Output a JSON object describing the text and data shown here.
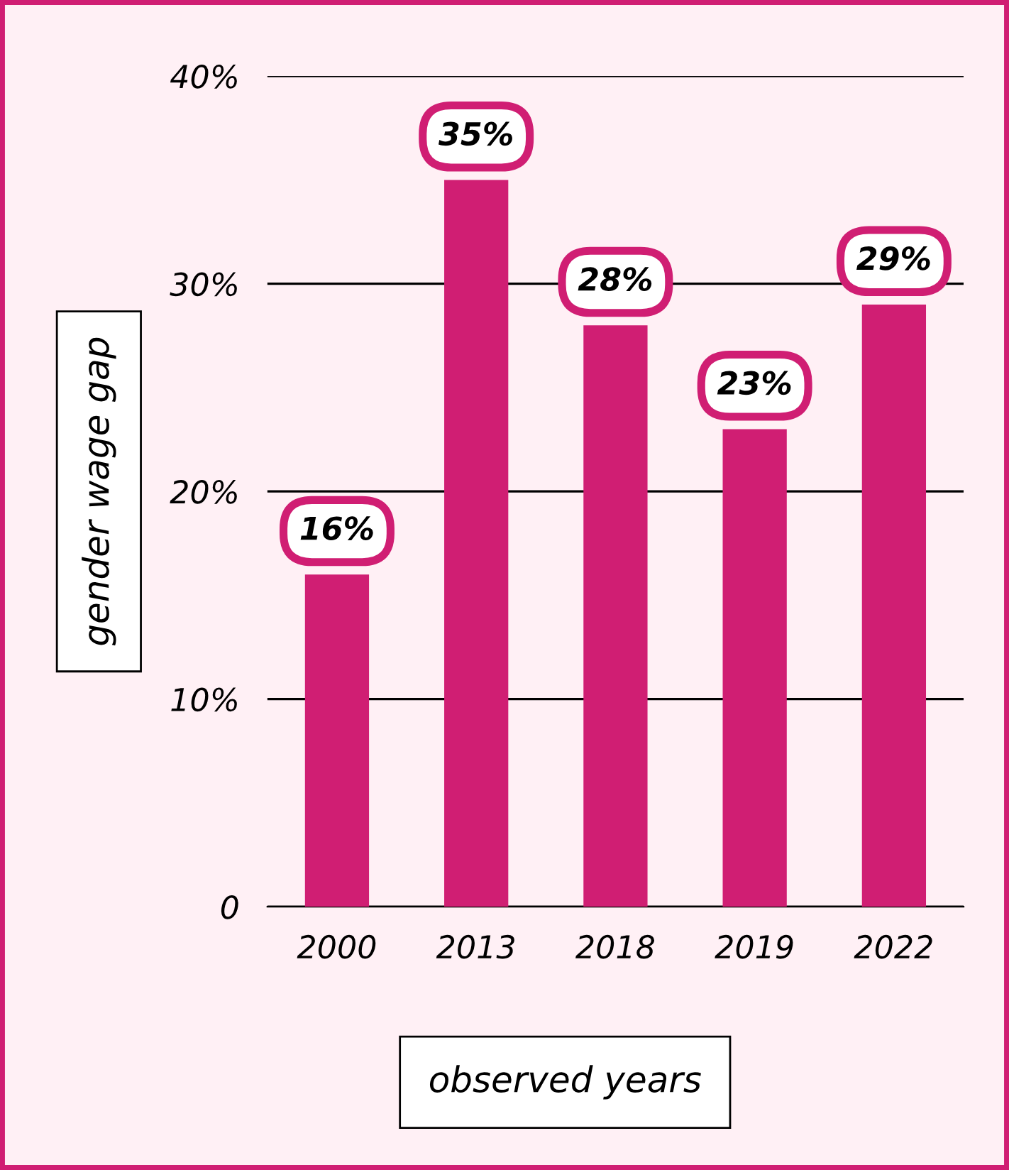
{
  "chart_data": {
    "type": "bar",
    "xlabel": "observed years",
    "ylabel": "gender wage gap",
    "categories": [
      "2000",
      "2013",
      "2018",
      "2019",
      "2022"
    ],
    "values": [
      16,
      35,
      28,
      23,
      29
    ],
    "value_labels": [
      "16%",
      "35%",
      "28%",
      "23%",
      "29%"
    ],
    "color": "#d01e73",
    "ylim": [
      0,
      40
    ],
    "yticks": [
      {
        "value": 0,
        "label": "0"
      },
      {
        "value": 10,
        "label": "10%"
      },
      {
        "value": 20,
        "label": "20%"
      },
      {
        "value": 30,
        "label": "30%"
      },
      {
        "value": 40,
        "label": "40%"
      }
    ],
    "grid": "y"
  }
}
